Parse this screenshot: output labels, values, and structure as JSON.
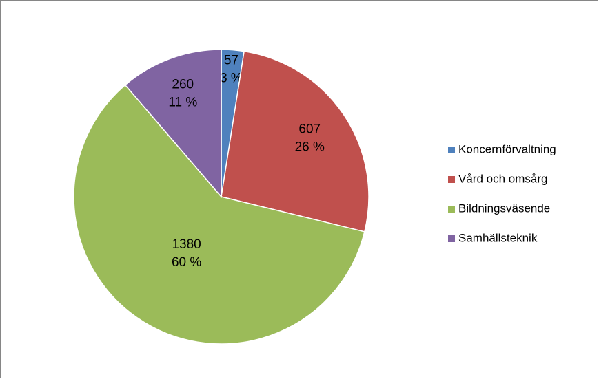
{
  "chart_data": {
    "type": "pie",
    "categories": [
      "Koncernförvaltning",
      "Vård och omsårg",
      "Bildningsväsende",
      "Samhällsteknik"
    ],
    "values": [
      57,
      607,
      1380,
      260
    ],
    "percent_labels": [
      "3 %",
      "26 %",
      "60 %",
      "11 %"
    ],
    "colors": [
      "#4f81bd",
      "#c0504d",
      "#9bbb59",
      "#8064a2"
    ],
    "legend": "right"
  }
}
